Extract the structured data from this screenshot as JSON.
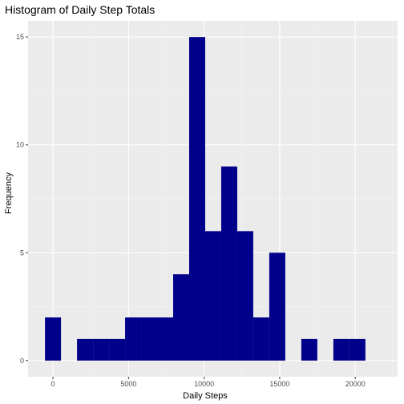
{
  "chart_data": {
    "type": "bar",
    "title": "Histogram of Daily Step Totals",
    "xlabel": "Daily Steps",
    "ylabel": "Frequency",
    "bin_width": 1060,
    "bins": [
      {
        "x_start": -530,
        "x_end": 530,
        "count": 2
      },
      {
        "x_start": 530,
        "x_end": 1590,
        "count": 0
      },
      {
        "x_start": 1590,
        "x_end": 2650,
        "count": 1
      },
      {
        "x_start": 2650,
        "x_end": 3710,
        "count": 1
      },
      {
        "x_start": 3710,
        "x_end": 4770,
        "count": 1
      },
      {
        "x_start": 4770,
        "x_end": 5830,
        "count": 2
      },
      {
        "x_start": 5830,
        "x_end": 6890,
        "count": 2
      },
      {
        "x_start": 6890,
        "x_end": 7950,
        "count": 2
      },
      {
        "x_start": 7950,
        "x_end": 9010,
        "count": 4
      },
      {
        "x_start": 9010,
        "x_end": 10070,
        "count": 15
      },
      {
        "x_start": 10070,
        "x_end": 11130,
        "count": 6
      },
      {
        "x_start": 11130,
        "x_end": 12190,
        "count": 9
      },
      {
        "x_start": 12190,
        "x_end": 13250,
        "count": 6
      },
      {
        "x_start": 13250,
        "x_end": 14310,
        "count": 2
      },
      {
        "x_start": 14310,
        "x_end": 15370,
        "count": 5
      },
      {
        "x_start": 15370,
        "x_end": 16430,
        "count": 0
      },
      {
        "x_start": 16430,
        "x_end": 17490,
        "count": 1
      },
      {
        "x_start": 17490,
        "x_end": 18550,
        "count": 0
      },
      {
        "x_start": 18550,
        "x_end": 19610,
        "count": 1
      },
      {
        "x_start": 19610,
        "x_end": 20670,
        "count": 1
      }
    ],
    "xlim": [
      -1650,
      22800
    ],
    "ylim": [
      -0.75,
      15.75
    ],
    "xticks": [
      0,
      5000,
      10000,
      15000,
      20000
    ],
    "xtick_labels": [
      "0",
      "5000",
      "10000",
      "15000",
      "20000"
    ],
    "yticks": [
      0,
      5,
      10,
      15
    ],
    "ytick_labels": [
      "0",
      "5",
      "10",
      "15"
    ],
    "grid": true,
    "colors": {
      "bar_fill": "#00008B",
      "panel_background": "#EBEBEB",
      "grid_major": "#FFFFFF",
      "tick_text": "#4D4D4D",
      "tick_mark": "#333333"
    }
  }
}
